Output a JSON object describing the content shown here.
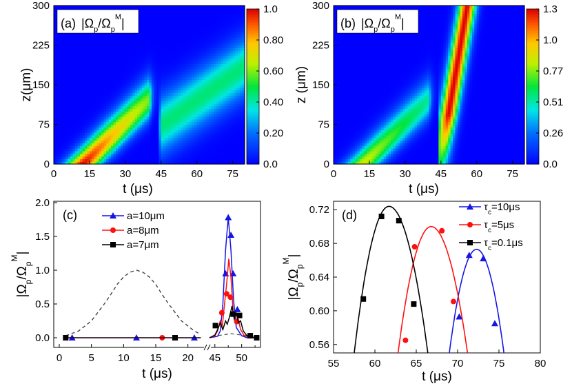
{
  "chart_data": [
    {
      "id": "a",
      "type": "heatmap",
      "panel_label": "(a)",
      "quantity": "|Ω",
      "xlabel": "t (μs)",
      "ylabel": "z(μm)",
      "xlim": [
        0,
        80
      ],
      "ylim": [
        0,
        300
      ],
      "xticks": [
        "0",
        "15",
        "30",
        "45",
        "60",
        "75"
      ],
      "yticks": [
        "0",
        "75",
        "150",
        "225",
        "300"
      ],
      "colorbar": {
        "min": 0.0,
        "max": 1.0,
        "ticks": [
          "0.0",
          "0.20",
          "0.40",
          "0.60",
          "0.80",
          "1.0"
        ]
      },
      "features": [
        {
          "kind": "gaussian-pulse",
          "peak_value": 1.0,
          "t_at_z0": 12,
          "z_speed_um_per_us": 4.5,
          "t_cutoff": 40
        },
        {
          "kind": "faint-tail",
          "t_start": 44,
          "z_at_start": 70,
          "slope": 3.2,
          "value": 0.45
        }
      ]
    },
    {
      "id": "b",
      "type": "heatmap",
      "panel_label": "(b)",
      "quantity": "|Ω",
      "xlabel": "t (μs)",
      "ylabel": "z (μm)",
      "xlim": [
        0,
        80
      ],
      "ylim": [
        0,
        300
      ],
      "xticks": [
        "0",
        "15",
        "30",
        "45",
        "60",
        "75"
      ],
      "yticks": [
        "0",
        "75",
        "150",
        "225",
        "300"
      ],
      "colorbar": {
        "min": 0.0,
        "max": 1.3,
        "ticks": [
          "0.0",
          "0.26",
          "0.51",
          "0.77",
          "1.0",
          "1.3"
        ]
      },
      "features": [
        {
          "kind": "gaussian-pulse",
          "peak_value": 0.9,
          "t_at_z0": 12,
          "z_speed_um_per_us": 4.5,
          "t_cutoff": 40
        },
        {
          "kind": "retrieved-pulse",
          "t_start": 44.5,
          "z_speed_um_per_us": 26,
          "peak_value": 1.3
        }
      ]
    },
    {
      "id": "c",
      "type": "line",
      "panel_label": "(c)",
      "xlabel": "t (μs)",
      "ylabel": "|Ω",
      "broken_axis": true,
      "xlim_left": [
        0,
        22.5
      ],
      "xlim_right": [
        44,
        53
      ],
      "ylim": [
        0,
        2.0
      ],
      "xticks_left": [
        0,
        5,
        10,
        15,
        20
      ],
      "xticks_right": [
        45,
        50
      ],
      "yticks": [
        "0.0",
        "0.5",
        "1.0",
        "1.5",
        "2.0"
      ],
      "legend": [
        "a=10μm",
        "a=8μm",
        "a=7μm"
      ],
      "input_pulse": {
        "style": "dashed",
        "x": [
          1,
          3,
          5,
          7,
          8,
          9,
          10,
          11,
          12,
          13,
          14,
          15,
          16,
          17,
          19,
          21,
          22
        ],
        "y": [
          0.03,
          0.1,
          0.25,
          0.5,
          0.64,
          0.79,
          0.9,
          0.97,
          1.0,
          0.97,
          0.9,
          0.79,
          0.64,
          0.5,
          0.25,
          0.1,
          0.05
        ]
      },
      "series": [
        {
          "name": "a=10μm",
          "color": "#1515e6",
          "marker": "triangle",
          "x": [
            44,
            45.5,
            46,
            46.5,
            47,
            47.5,
            48,
            48.5,
            49,
            50,
            51,
            52,
            53
          ],
          "y": [
            0,
            0.02,
            0.1,
            0.5,
            1.3,
            1.78,
            1.3,
            0.55,
            0.15,
            0.03,
            0,
            0,
            0
          ],
          "markers_x": [
            2,
            12,
            21,
            47,
            47.5,
            48,
            48.4,
            49.2
          ],
          "markers_y": [
            0,
            0,
            0,
            0.95,
            1.78,
            1.52,
            0.95,
            0.42
          ]
        },
        {
          "name": "a=8μm",
          "color": "#ff1010",
          "marker": "circle",
          "x": [
            44,
            45,
            45.5,
            46,
            46.4,
            46.8,
            47.2,
            47.6,
            48,
            48.4,
            48.8,
            49.3,
            49.8,
            50.5,
            51.5,
            53
          ],
          "y": [
            0,
            0.03,
            0.1,
            0.25,
            0.18,
            0.5,
            0.8,
            1.17,
            0.9,
            0.4,
            0.22,
            0.3,
            0.12,
            0.03,
            0.01,
            0
          ],
          "markers_x": [
            16,
            46.3,
            47.2,
            47.9,
            49.1
          ],
          "markers_y": [
            0,
            0.37,
            0.65,
            0.6,
            0.24
          ]
        },
        {
          "name": "a=7μm",
          "color": "#000000",
          "marker": "square",
          "x": [
            44,
            45,
            45.5,
            46,
            46.5,
            47,
            47.3,
            47.7,
            48.2,
            48.6,
            49,
            49.4,
            49.8,
            50.3,
            51,
            52,
            53
          ],
          "y": [
            0,
            0.04,
            0.12,
            0.22,
            0.12,
            0.25,
            0.2,
            0.3,
            0.47,
            0.28,
            0.36,
            0.22,
            0.25,
            0.1,
            0.03,
            0.01,
            0
          ],
          "markers_x": [
            1,
            18,
            45.1,
            48.4,
            49.6,
            51.6,
            52.8
          ],
          "markers_y": [
            0,
            0,
            0.18,
            0.35,
            0.33,
            0.03,
            0
          ]
        }
      ]
    },
    {
      "id": "d",
      "type": "line",
      "panel_label": "(d)",
      "xlabel": "t (μs)",
      "ylabel": "|Ω",
      "xlim": [
        55,
        80
      ],
      "ylim": [
        0.55,
        0.73
      ],
      "xticks": [
        55,
        60,
        65,
        70,
        75,
        80
      ],
      "yticks": [
        "0.56",
        "0.60",
        "0.64",
        "0.68",
        "0.72"
      ],
      "legend": [
        "τ",
        "τ",
        "τ"
      ],
      "series": [
        {
          "name": "τc=10μs",
          "legend_sub": "c",
          "legend_rest": "=10μs",
          "color": "#1515e6",
          "marker": "triangle",
          "curve": {
            "peak_x": 72.3,
            "peak_y": 0.673,
            "half_width": 2.3,
            "x_from": 69,
            "x_to": 75.6
          },
          "markers_x": [
            70.2,
            71.4,
            73.1,
            74.5
          ],
          "markers_y": [
            0.593,
            0.666,
            0.662,
            0.585
          ]
        },
        {
          "name": "τc=5μs",
          "legend_sub": "c",
          "legend_rest": "=5μs",
          "color": "#ff1010",
          "marker": "circle",
          "curve": {
            "peak_x": 66.8,
            "peak_y": 0.7,
            "half_width": 3.0,
            "x_from": 62.8,
            "x_to": 71.2
          },
          "markers_x": [
            63.7,
            64.8,
            68.1,
            69.5
          ],
          "markers_y": [
            0.565,
            0.676,
            0.695,
            0.611
          ]
        },
        {
          "name": "τc=0.1μs",
          "legend_sub": "c",
          "legend_rest": "=0.1μs",
          "color": "#000000",
          "marker": "square",
          "curve": {
            "peak_x": 61.7,
            "peak_y": 0.724,
            "half_width": 3.5,
            "x_from": 57.5,
            "x_to": 66.4
          },
          "markers_x": [
            58.6,
            60.8,
            62.9,
            64.7
          ],
          "markers_y": [
            0.614,
            0.712,
            0.707,
            0.608
          ]
        }
      ]
    }
  ]
}
